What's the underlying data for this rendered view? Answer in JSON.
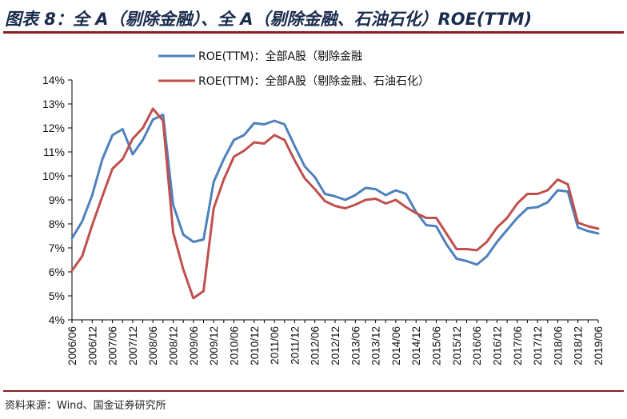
{
  "header": {
    "title": "图表 8：全 A（剔除金融）、全 A（剔除金融、石油石化）ROE(TTM)"
  },
  "footer": {
    "source": "资料来源：Wind、国金证券研究所"
  },
  "chart_data": {
    "type": "line",
    "title": "图表 8：全 A（剔除金融）、全 A（剔除金融、石油石化）ROE(TTM)",
    "xlabel": "",
    "ylabel": "",
    "ylim": [
      4,
      14
    ],
    "yticks": [
      "4%",
      "5%",
      "6%",
      "7%",
      "8%",
      "9%",
      "10%",
      "11%",
      "12%",
      "13%",
      "14%"
    ],
    "y_unit": "%",
    "grid": false,
    "legend_position": "top-center",
    "categories": [
      "2006/06",
      "2006/09",
      "2006/12",
      "2007/03",
      "2007/06",
      "2007/09",
      "2007/12",
      "2008/03",
      "2008/06",
      "2008/09",
      "2008/12",
      "2009/03",
      "2009/06",
      "2009/09",
      "2009/12",
      "2010/03",
      "2010/06",
      "2010/09",
      "2010/12",
      "2011/03",
      "2011/06",
      "2011/09",
      "2011/12",
      "2012/03",
      "2012/06",
      "2012/09",
      "2012/12",
      "2013/03",
      "2013/06",
      "2013/09",
      "2013/12",
      "2014/03",
      "2014/06",
      "2014/09",
      "2014/12",
      "2015/03",
      "2015/06",
      "2015/09",
      "2015/12",
      "2016/03",
      "2016/06",
      "2016/09",
      "2016/12",
      "2017/03",
      "2017/06",
      "2017/09",
      "2017/12",
      "2018/03",
      "2018/06",
      "2018/09",
      "2018/12",
      "2019/03",
      "2019/06"
    ],
    "x_tick_labels": [
      "2006/06",
      "2006/12",
      "2007/06",
      "2007/12",
      "2008/06",
      "2008/12",
      "2009/06",
      "2009/12",
      "2010/06",
      "2010/12",
      "2011/06",
      "2011/12",
      "2012/06",
      "2012/12",
      "2013/06",
      "2013/12",
      "2014/06",
      "2014/12",
      "2015/06",
      "2015/12",
      "2016/06",
      "2016/12",
      "2017/06",
      "2017/12",
      "2018/06",
      "2018/12",
      "2019/06"
    ],
    "series": [
      {
        "name": "ROE(TTM)：全部A股（剔除金融",
        "color": "#4f81bd",
        "values": [
          7.4,
          8.1,
          9.2,
          10.7,
          11.7,
          11.95,
          10.9,
          11.5,
          12.35,
          12.55,
          8.8,
          7.55,
          7.25,
          7.35,
          9.75,
          10.7,
          11.5,
          11.7,
          12.2,
          12.15,
          12.3,
          12.15,
          11.25,
          10.4,
          9.95,
          9.25,
          9.15,
          9.0,
          9.2,
          9.5,
          9.45,
          9.2,
          9.4,
          9.25,
          8.5,
          7.95,
          7.9,
          7.15,
          6.55,
          6.45,
          6.3,
          6.65,
          7.25,
          7.75,
          8.25,
          8.65,
          8.7,
          8.9,
          9.4,
          9.35,
          7.85,
          7.7,
          7.6
        ]
      },
      {
        "name": "ROE(TTM)：全部A股（剔除金融、石油石化）",
        "color": "#c0504d",
        "values": [
          6.05,
          6.65,
          7.95,
          9.15,
          10.3,
          10.7,
          11.55,
          12.0,
          12.8,
          12.3,
          7.65,
          6.1,
          4.9,
          5.2,
          8.65,
          9.85,
          10.8,
          11.05,
          11.4,
          11.35,
          11.7,
          11.5,
          10.65,
          9.9,
          9.45,
          8.95,
          8.75,
          8.65,
          8.8,
          9.0,
          9.05,
          8.85,
          9.0,
          8.7,
          8.45,
          8.25,
          8.25,
          7.6,
          6.95,
          6.95,
          6.9,
          7.25,
          7.85,
          8.25,
          8.85,
          9.25,
          9.25,
          9.4,
          9.85,
          9.65,
          8.05,
          7.9,
          7.8
        ]
      }
    ]
  }
}
